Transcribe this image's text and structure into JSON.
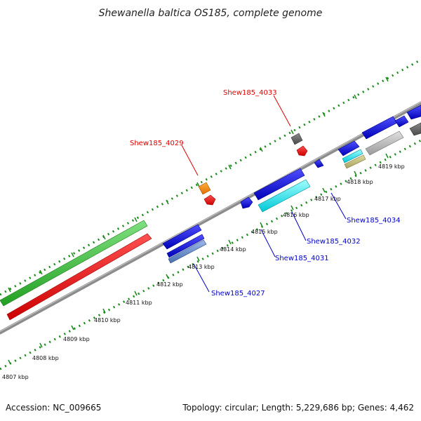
{
  "title": "Shewanella baltica OS185, complete genome",
  "footer": {
    "accession": "Accession: NC_009665",
    "summary": "Topology: circular; Length: 5,229,686 bp; Genes: 4,462"
  },
  "ticks": [
    "4807 kbp",
    "4808 kbp",
    "4809 kbp",
    "4810 kbp",
    "4811 kbp",
    "4812 kbp",
    "4813 kbp",
    "4814 kbp",
    "4815 kbp",
    "4816 kbp",
    "4817 kbp",
    "4818 kbp",
    "4819 kbp"
  ],
  "gene_labels": [
    {
      "text": "Shew185_4029",
      "color": "#e00000"
    },
    {
      "text": "Shew185_4033",
      "color": "#e00000"
    },
    {
      "text": "Shew185_4027",
      "color": "#0000cc"
    },
    {
      "text": "Shew185_4031",
      "color": "#0000cc"
    },
    {
      "text": "Shew185_4032",
      "color": "#0000cc"
    },
    {
      "text": "Shew185_4034",
      "color": "#0000cc"
    }
  ],
  "colors": {
    "backbone": "#808080",
    "ticks": "#1a8a1a",
    "green_feature": "#33bb33",
    "red_feature": "#ee0000",
    "blue_feature": "#0000dd",
    "cyan_feature": "#00e5ee",
    "orange_feature": "#ff8c00",
    "grey_feature": "#b0b0b0"
  }
}
